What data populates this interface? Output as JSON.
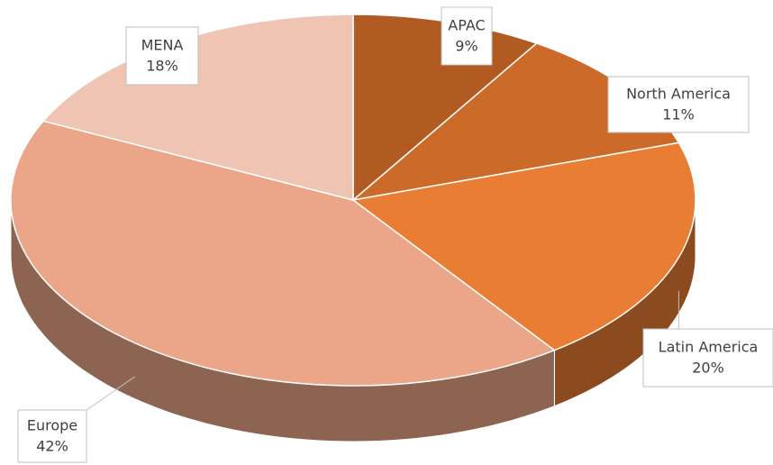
{
  "chart_data": {
    "type": "pie",
    "categories": [
      "APAC",
      "North America",
      "Latin America",
      "Europe",
      "MENA"
    ],
    "values": [
      9,
      11,
      20,
      42,
      18
    ],
    "value_labels": [
      "9%",
      "11%",
      "20%",
      "42%",
      "18%"
    ],
    "colors": [
      "#b15a22",
      "#cc6a2a",
      "#e87d33",
      "#eba588",
      "#f0c4b2"
    ]
  }
}
